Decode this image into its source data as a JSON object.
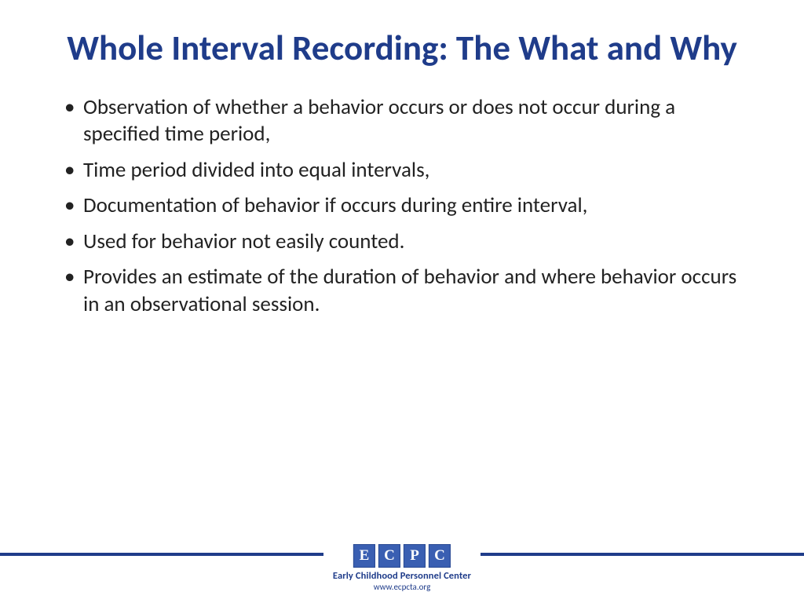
{
  "title": "Whole Interval Recording: The What and Why",
  "bullets": [
    "Observation of whether a behavior occurs or does not occur during a specified time period,",
    "Time period divided into equal intervals,",
    "Documentation of behavior if occurs during entire interval,",
    "Used for behavior not easily counted.",
    "Provides an estimate of the duration of behavior and where behavior occurs in an observational session."
  ],
  "logo": {
    "letters": [
      "E",
      "C",
      "P",
      "C"
    ],
    "caption": "Early Childhood Personnel Center",
    "url": "www.ecpcta.org"
  },
  "colors": {
    "title": "#1f3c8a",
    "body_text": "#222222",
    "rule": "#1f3c8a",
    "logo_box_bg": "#3a5fb2",
    "logo_box_border": "#2a4a93",
    "logo_text": "#ffffff",
    "background": "#ffffff"
  }
}
